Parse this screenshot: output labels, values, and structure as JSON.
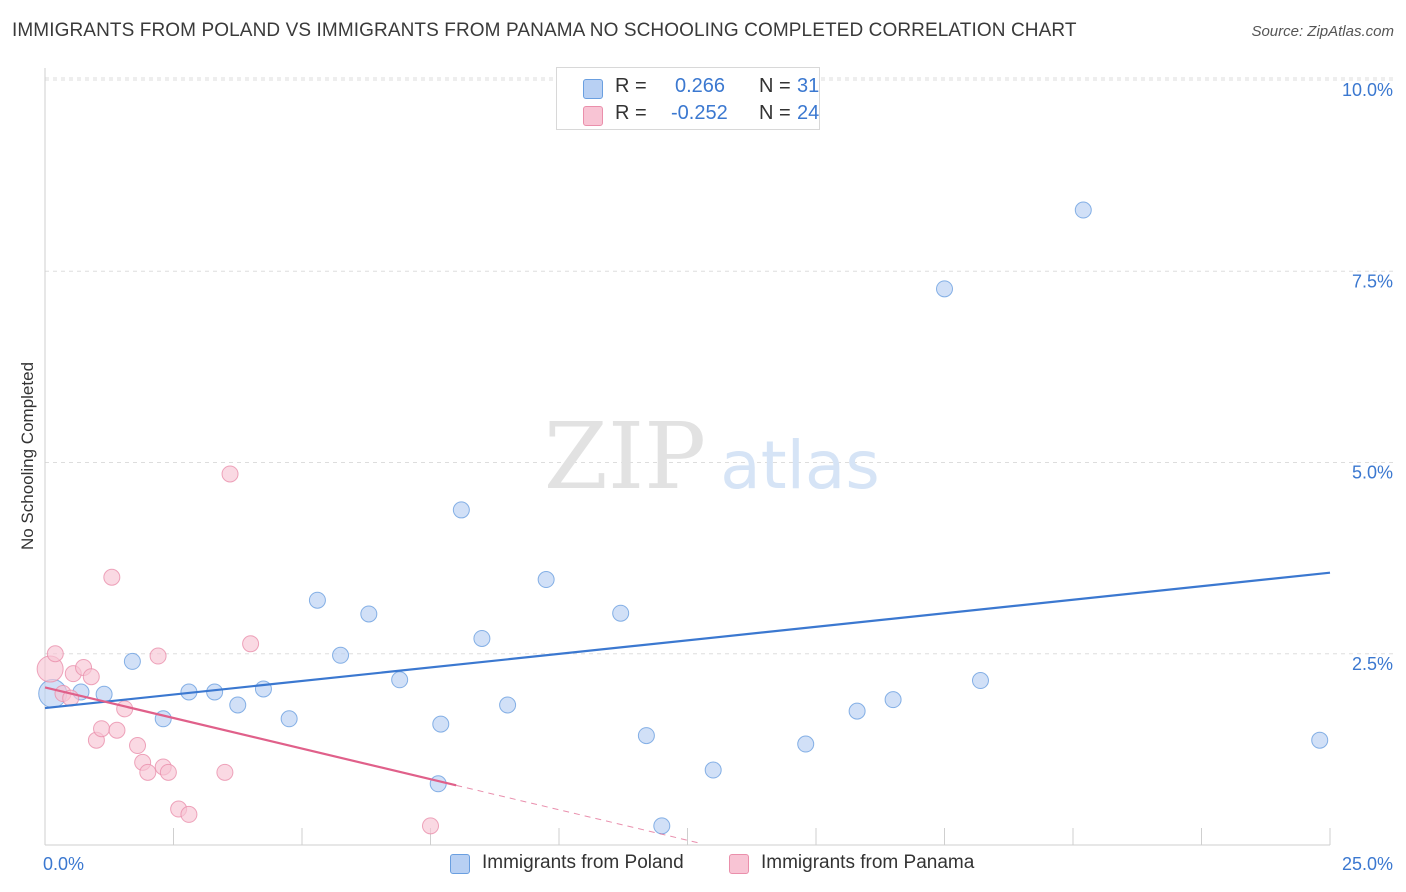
{
  "header": {
    "title": "IMMIGRANTS FROM POLAND VS IMMIGRANTS FROM PANAMA NO SCHOOLING COMPLETED CORRELATION CHART",
    "source": "Source: ZipAtlas.com"
  },
  "watermark": {
    "zip": "ZIP",
    "atlas": "atlas"
  },
  "legend": {
    "poland": {
      "r_label": "R =",
      "r_value": "0.266",
      "n_label": "N =",
      "n_value": "31"
    },
    "panama": {
      "r_label": "R =",
      "r_value": "-0.252",
      "n_label": "N =",
      "n_value": "24"
    }
  },
  "bottom_legend": {
    "poland": "Immigrants from Poland",
    "panama": "Immigrants from Panama"
  },
  "colors": {
    "poland_fill": "#b8d0f3",
    "poland_stroke": "#6a9fe0",
    "poland_line": "#3b78d0",
    "panama_fill": "#f8c4d4",
    "panama_stroke": "#ea8fab",
    "panama_line": "#e0608a",
    "tick_label": "#3b78d0",
    "grid": "#dddddd"
  },
  "chart_data": {
    "type": "scatter",
    "title": "IMMIGRANTS FROM POLAND VS IMMIGRANTS FROM PANAMA NO SCHOOLING COMPLETED CORRELATION CHART",
    "xlabel": "",
    "ylabel": "No Schooling Completed",
    "xlim": [
      0,
      25
    ],
    "ylim": [
      0,
      10.5
    ],
    "x_tick_labels": [
      {
        "value": 0,
        "label": "0.0%"
      },
      {
        "value": 25,
        "label": "25.0%"
      }
    ],
    "y_ticks": [
      {
        "value": 2.5,
        "label": "2.5%"
      },
      {
        "value": 5.0,
        "label": "5.0%"
      },
      {
        "value": 7.5,
        "label": "7.5%"
      },
      {
        "value": 10.0,
        "label": "10.0%"
      }
    ],
    "series": [
      {
        "name": "Immigrants from Poland",
        "r": 0.266,
        "n": 31,
        "points": [
          [
            0.15,
            1.98
          ],
          [
            0.7,
            2.0
          ],
          [
            1.15,
            1.97
          ],
          [
            1.7,
            2.4
          ],
          [
            2.3,
            1.65
          ],
          [
            2.8,
            2.0
          ],
          [
            3.3,
            2.0
          ],
          [
            3.75,
            1.83
          ],
          [
            4.25,
            2.04
          ],
          [
            4.75,
            1.65
          ],
          [
            5.3,
            3.2
          ],
          [
            5.75,
            2.48
          ],
          [
            6.3,
            3.02
          ],
          [
            6.9,
            2.16
          ],
          [
            7.65,
            0.8
          ],
          [
            7.7,
            1.58
          ],
          [
            8.1,
            4.38
          ],
          [
            8.5,
            2.7
          ],
          [
            9.0,
            1.83
          ],
          [
            9.75,
            3.47
          ],
          [
            11.2,
            3.03
          ],
          [
            11.7,
            1.43
          ],
          [
            12.0,
            0.25
          ],
          [
            13.0,
            0.98
          ],
          [
            14.8,
            1.32
          ],
          [
            15.8,
            1.75
          ],
          [
            16.5,
            1.9
          ],
          [
            17.5,
            7.27
          ],
          [
            18.2,
            2.15
          ],
          [
            20.2,
            8.3
          ],
          [
            24.8,
            1.37
          ]
        ],
        "trend": {
          "x": [
            0,
            25
          ],
          "y": [
            1.79,
            3.56
          ]
        }
      },
      {
        "name": "Immigrants from Panama",
        "r": -0.252,
        "n": 24,
        "points": [
          [
            0.1,
            2.3
          ],
          [
            0.2,
            2.5
          ],
          [
            0.35,
            1.98
          ],
          [
            0.5,
            1.92
          ],
          [
            0.55,
            2.24
          ],
          [
            0.75,
            2.32
          ],
          [
            0.9,
            2.2
          ],
          [
            1.0,
            1.37
          ],
          [
            1.1,
            1.52
          ],
          [
            1.3,
            3.5
          ],
          [
            1.4,
            1.5
          ],
          [
            1.55,
            1.78
          ],
          [
            1.8,
            1.3
          ],
          [
            1.9,
            1.08
          ],
          [
            2.0,
            0.95
          ],
          [
            2.2,
            2.47
          ],
          [
            2.3,
            1.02
          ],
          [
            2.4,
            0.95
          ],
          [
            2.6,
            0.47
          ],
          [
            2.8,
            0.4
          ],
          [
            3.5,
            0.95
          ],
          [
            3.6,
            4.85
          ],
          [
            4.0,
            2.63
          ],
          [
            7.5,
            0.25
          ]
        ],
        "trend": {
          "x": [
            0,
            8.0
          ],
          "y": [
            2.06,
            0.78
          ]
        },
        "trend_dashed": {
          "x": [
            8.0,
            12.7
          ],
          "y": [
            0.78,
            0.03
          ]
        }
      }
    ]
  }
}
